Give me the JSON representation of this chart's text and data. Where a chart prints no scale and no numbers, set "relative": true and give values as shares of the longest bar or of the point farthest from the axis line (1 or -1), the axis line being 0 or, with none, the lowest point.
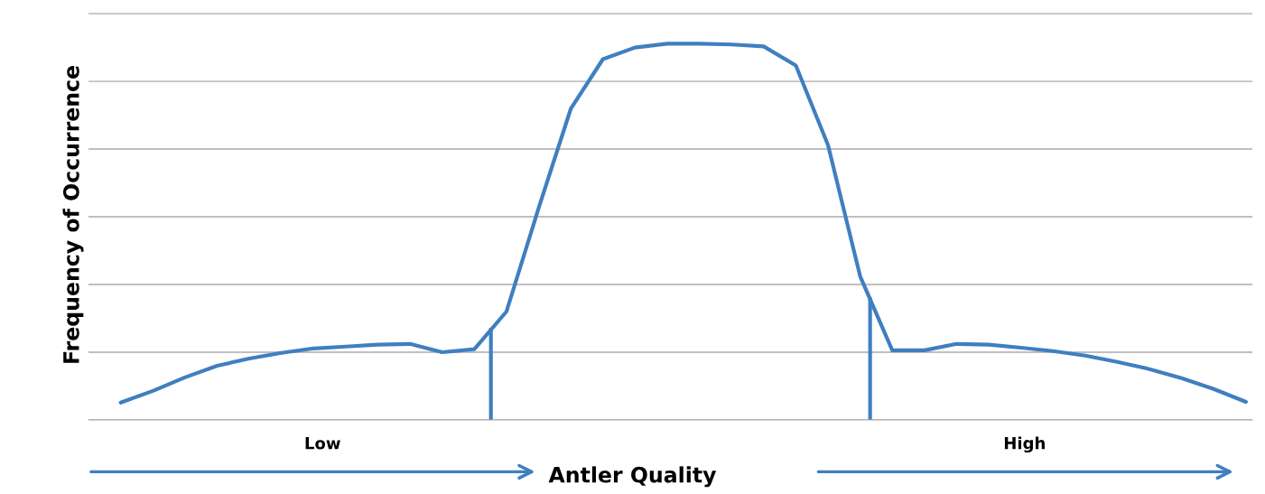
{
  "chart_data": {
    "type": "line",
    "relative": true,
    "ylabel": "Frequency of Occurrence",
    "xlabel": "Antler Quality",
    "categories": [
      null,
      null,
      null,
      null,
      null,
      null,
      null,
      null,
      null,
      null,
      null,
      null,
      null,
      null,
      null,
      null,
      null,
      null,
      null,
      null,
      null,
      null,
      null,
      null,
      null,
      null,
      null,
      null,
      null,
      null,
      null,
      null,
      null,
      null,
      null,
      null
    ],
    "series": [
      {
        "color": "#3f7fc0",
        "values": [
          0.046,
          0.077,
          0.113,
          0.144,
          0.163,
          0.178,
          0.19,
          0.195,
          0.2,
          0.202,
          0.18,
          0.188,
          0.288,
          0.563,
          0.827,
          0.959,
          0.99,
          1.0,
          1.0,
          0.998,
          0.993,
          0.942,
          0.731,
          0.382,
          0.185,
          0.185,
          0.202,
          0.2,
          0.192,
          0.183,
          0.171,
          0.154,
          0.135,
          0.111,
          0.082,
          0.048
        ]
      }
    ],
    "annotations": [
      "Low",
      "High"
    ],
    "grid": "y",
    "marker": "none",
    "line_style": "solid",
    "legend": false
  }
}
